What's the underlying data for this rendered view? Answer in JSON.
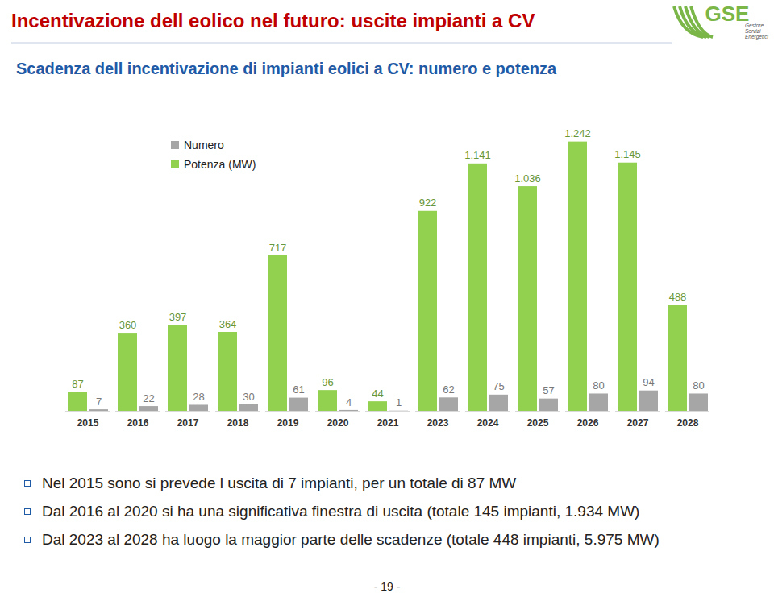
{
  "slide": {
    "header": "Incentivazione dell eolico nel futuro: uscite impianti a CV",
    "logo": {
      "name": "GSE",
      "lines": [
        "Gestore",
        "Servizi",
        "Energetici"
      ]
    },
    "bullets": [
      "Nel 2015 sono si prevede l uscita di 7 impianti, per un totale di 87 MW",
      "Dal 2016 al 2020 si ha una significativa finestra di uscita (totale 145 impianti, 1.934 MW)",
      "Dal 2023 al 2028 ha luogo la maggior parte delle scadenze (totale 448 impianti, 5.975 MW)"
    ],
    "page": "- 19 -"
  },
  "chart_data": {
    "type": "bar",
    "title": "Scadenza dell incentivazione di impianti eolici a CV: numero e potenza",
    "categories": [
      "2015",
      "2016",
      "2017",
      "2018",
      "2019",
      "2020",
      "2021",
      "2023",
      "2024",
      "2025",
      "2026",
      "2027",
      "2028"
    ],
    "series": [
      {
        "name": "Potenza (MW)",
        "color": "#92d050",
        "values": [
          87,
          360,
          397,
          364,
          717,
          96,
          44,
          922,
          1141,
          1036,
          1242,
          1145,
          488
        ],
        "value_labels": [
          "87",
          "360",
          "397",
          "364",
          "717",
          "96",
          "44",
          "922",
          "1.141",
          "1.036",
          "1.242",
          "1.145",
          "488"
        ]
      },
      {
        "name": "Numero",
        "color": "#a6a6a6",
        "values": [
          7,
          22,
          28,
          30,
          61,
          4,
          1,
          62,
          75,
          57,
          80,
          94,
          80
        ]
      }
    ],
    "legend_order": [
      "Numero",
      "Potenza (MW)"
    ],
    "legend": "top-left",
    "ylim": [
      0,
      1300
    ],
    "data_labels": true,
    "tick_labels": "x",
    "grid": false
  }
}
